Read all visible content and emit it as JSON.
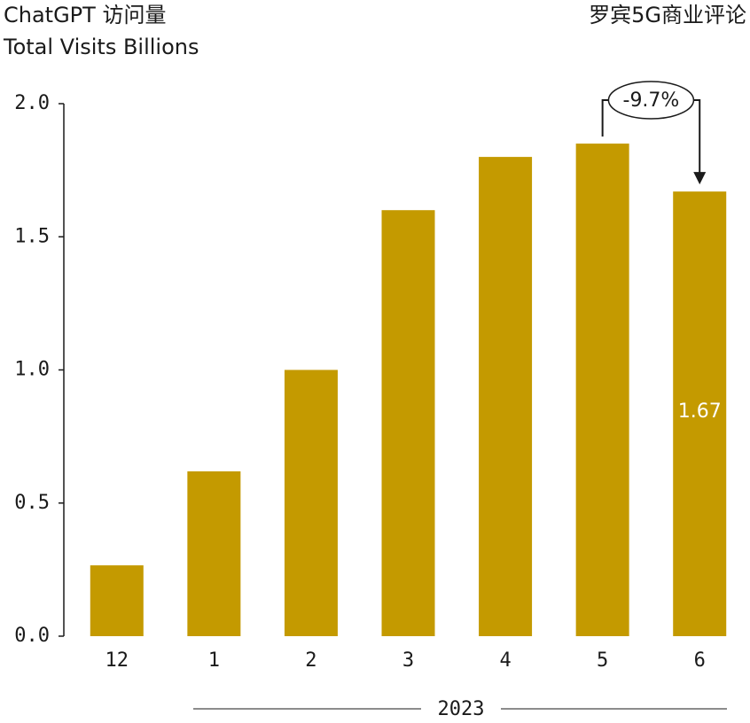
{
  "chart_data": {
    "type": "bar",
    "title": "ChatGPT 访问量",
    "subtitle": "Total Visits Billions",
    "source": "罗宾5G商业评论",
    "xlabel": "2023",
    "categories": [
      "12",
      "1",
      "2",
      "3",
      "4",
      "5",
      "6"
    ],
    "values": [
      0.266,
      0.619,
      1.0,
      1.6,
      1.8,
      1.85,
      1.67
    ],
    "value_labels": [
      null,
      null,
      null,
      null,
      null,
      null,
      "1.67"
    ],
    "color": "#c49a00",
    "ylim": [
      0,
      2.0
    ],
    "yticks": [
      {
        "value": 0,
        "label": "0.0"
      },
      {
        "value": 0.5,
        "label": "0.5"
      },
      {
        "value": 1.0,
        "label": "1.0"
      },
      {
        "value": 1.5,
        "label": "1.5"
      },
      {
        "value": 2.0,
        "label": "2.0"
      }
    ],
    "grid": false,
    "annotations": [
      {
        "text": "-9.7%"
      }
    ]
  }
}
